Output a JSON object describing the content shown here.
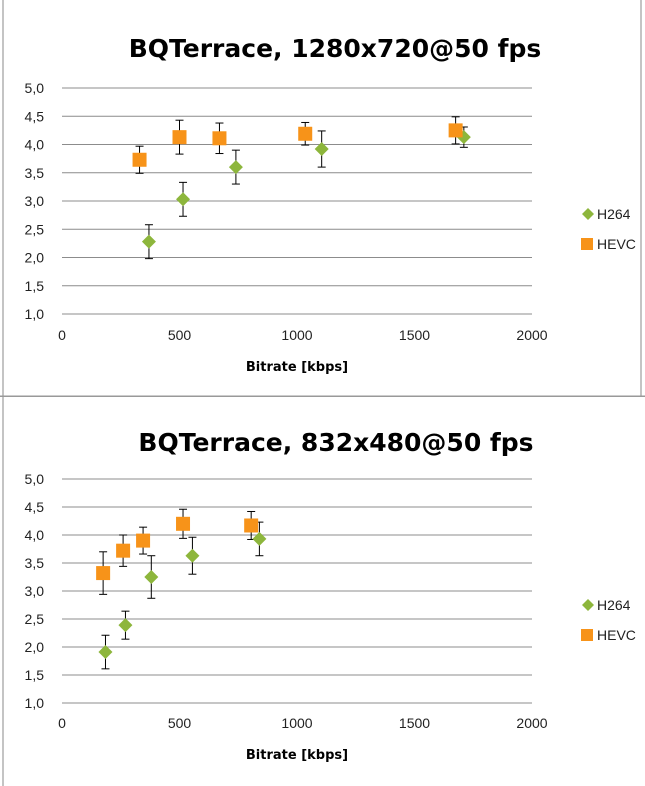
{
  "chart_data": [
    {
      "type": "scatter",
      "title": "BQTerrace, 1280x720@50 fps",
      "xlabel": "Bitrate [kbps]",
      "ylabel": "",
      "xlim": [
        0,
        2000
      ],
      "ylim": [
        1.0,
        5.0
      ],
      "x_ticks": [
        "0",
        "500",
        "1000",
        "1500",
        "2000"
      ],
      "y_ticks": [
        "1,0",
        "1,5",
        "2,0",
        "2,5",
        "3,0",
        "3,5",
        "4,0",
        "4,5",
        "5,0"
      ],
      "grid": true,
      "legend_position": "right",
      "series": [
        {
          "name": "H264",
          "color": "#8DB63C",
          "marker": "diamond",
          "points": [
            {
              "x": 370,
              "y": 2.28,
              "err": 0.3
            },
            {
              "x": 515,
              "y": 3.03,
              "err": 0.3
            },
            {
              "x": 740,
              "y": 3.6,
              "err": 0.3
            },
            {
              "x": 1105,
              "y": 3.92,
              "err": 0.32
            },
            {
              "x": 1710,
              "y": 4.13,
              "err": 0.18
            }
          ]
        },
        {
          "name": "HEVC",
          "color": "#F79319",
          "marker": "square",
          "points": [
            {
              "x": 330,
              "y": 3.73,
              "err": 0.24
            },
            {
              "x": 500,
              "y": 4.13,
              "err": 0.3
            },
            {
              "x": 670,
              "y": 4.11,
              "err": 0.27
            },
            {
              "x": 1035,
              "y": 4.19,
              "err": 0.2
            },
            {
              "x": 1675,
              "y": 4.25,
              "err": 0.24
            }
          ]
        }
      ]
    },
    {
      "type": "scatter",
      "title": "BQTerrace, 832x480@50 fps",
      "xlabel": "Bitrate [kbps]",
      "ylabel": "",
      "xlim": [
        0,
        2000
      ],
      "ylim": [
        1.0,
        5.0
      ],
      "x_ticks": [
        "0",
        "500",
        "1000",
        "1500",
        "2000"
      ],
      "y_ticks": [
        "1,0",
        "1,5",
        "2,0",
        "2,5",
        "3,0",
        "3,5",
        "4,0",
        "4,5",
        "5,0"
      ],
      "grid": true,
      "legend_position": "right",
      "series": [
        {
          "name": "H264",
          "color": "#8DB63C",
          "marker": "diamond",
          "points": [
            {
              "x": 185,
              "y": 1.91,
              "err": 0.3
            },
            {
              "x": 270,
              "y": 2.39,
              "err": 0.25
            },
            {
              "x": 380,
              "y": 3.25,
              "err": 0.38
            },
            {
              "x": 555,
              "y": 3.63,
              "err": 0.33
            },
            {
              "x": 840,
              "y": 3.93,
              "err": 0.3
            }
          ]
        },
        {
          "name": "HEVC",
          "color": "#F79319",
          "marker": "square",
          "points": [
            {
              "x": 175,
              "y": 3.32,
              "err": 0.38
            },
            {
              "x": 260,
              "y": 3.72,
              "err": 0.28
            },
            {
              "x": 345,
              "y": 3.9,
              "err": 0.24
            },
            {
              "x": 515,
              "y": 4.2,
              "err": 0.26
            },
            {
              "x": 805,
              "y": 4.17,
              "err": 0.25
            }
          ]
        }
      ]
    }
  ]
}
